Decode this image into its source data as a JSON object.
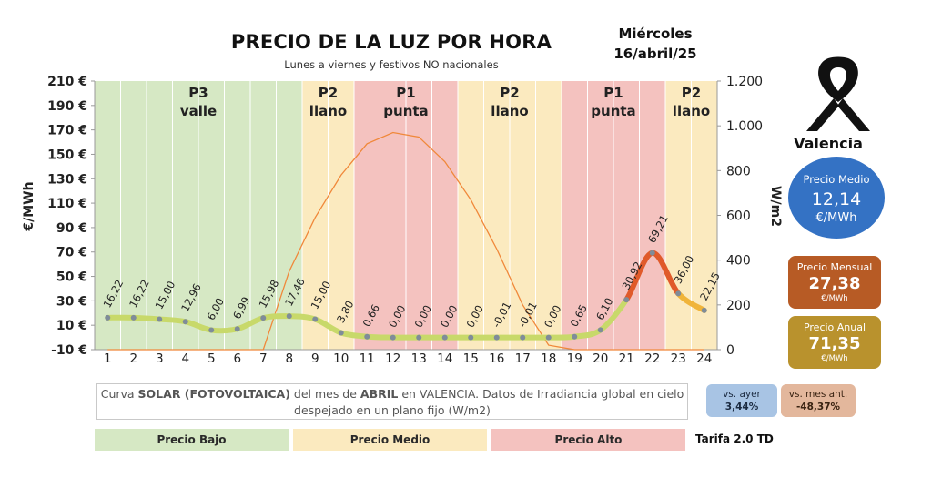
{
  "header": {
    "title": "PRECIO DE LA LUZ POR HORA",
    "subtitle": "Lunes a viernes y festivos NO nacionales",
    "weekday": "Miércoles",
    "date": "16/abril/25"
  },
  "sidebar": {
    "city": "Valencia",
    "ribbon_icon": "black-ribbon-icon",
    "medio": {
      "label": "Precio Medio",
      "value": "12,14",
      "unit": "€/MWh",
      "color": "#3472c4"
    },
    "mensual": {
      "label": "Precio Mensual",
      "value": "27,38",
      "unit": "€/MWh",
      "color": "#b75b25"
    },
    "anual": {
      "label": "Precio Anual",
      "value": "71,35",
      "unit": "€/MWh",
      "color": "#b9922d"
    }
  },
  "comparisons": {
    "ayer": {
      "label": "vs. ayer",
      "value": "3,44%"
    },
    "mes": {
      "label": "vs. mes ant.",
      "value": "-48,37%"
    }
  },
  "note": {
    "pre": "Curva ",
    "b1": "SOLAR (FOTOVOLTAICA)",
    "mid": " del mes de ",
    "b2": "ABRIL",
    "post": " en VALENCIA. Datos de Irradiancia global en cielo despejado en un plano fijo (W/m2)"
  },
  "legend": {
    "bajo": "Precio Bajo",
    "medio": "Precio Medio",
    "alto": "Precio Alto",
    "tarifa": "Tarifa 2.0 TD"
  },
  "chart_data": {
    "type": "line",
    "ylabel": "€/MWh",
    "y2label": "W/m2",
    "ylim": [
      -10,
      210
    ],
    "yticks": [
      -10,
      10,
      30,
      50,
      70,
      90,
      110,
      130,
      150,
      170,
      190,
      210
    ],
    "ytick_labels": [
      "-10 €",
      "10 €",
      "30 €",
      "50 €",
      "70 €",
      "90 €",
      "110 €",
      "130 €",
      "150 €",
      "170 €",
      "190 €",
      "210 €"
    ],
    "y2lim": [
      0,
      1200
    ],
    "y2ticks": [
      0,
      200,
      400,
      600,
      800,
      1000,
      1200
    ],
    "y2tick_labels": [
      "0",
      "200",
      "400",
      "600",
      "800",
      "1.000",
      "1.200"
    ],
    "x": [
      1,
      2,
      3,
      4,
      5,
      6,
      7,
      8,
      9,
      10,
      11,
      12,
      13,
      14,
      15,
      16,
      17,
      18,
      19,
      20,
      21,
      22,
      23,
      24
    ],
    "series": [
      {
        "axis": "left",
        "color": "#c8d96a",
        "values": [
          16.22,
          16.22,
          15.0,
          12.96,
          6.0,
          6.99,
          15.98,
          17.46,
          15.0,
          3.8,
          0.66,
          0.0,
          0.0,
          0.0,
          0.0,
          -0.01,
          -0.01,
          0.0,
          0.65,
          6.1,
          30.92,
          69.21,
          36.0,
          22.15
        ],
        "labels": [
          "16,22",
          "16,22",
          "15,00",
          "12,96",
          "6,00",
          "6,99",
          "15,98",
          "17,46",
          "15,00",
          "3,80",
          "0,66",
          "0,00",
          "0,00",
          "0,00",
          "0,00",
          "-0,01",
          "-0,01",
          "0,00",
          "0,65",
          "6,10",
          "30,92",
          "69,21",
          "36,00",
          "22,15"
        ]
      },
      {
        "axis": "right",
        "color": "#f0883a",
        "values": [
          0,
          0,
          0,
          0,
          0,
          0,
          0,
          350,
          590,
          780,
          920,
          970,
          950,
          840,
          670,
          450,
          200,
          20,
          0,
          0,
          0,
          0,
          0,
          0
        ]
      }
    ],
    "periods": [
      {
        "from": 0.5,
        "to": 8.5,
        "name": "P3",
        "type": "valle",
        "color": "#d6e8c4"
      },
      {
        "from": 8.5,
        "to": 10.5,
        "name": "P2",
        "type": "llano",
        "color": "#fbeabf"
      },
      {
        "from": 10.5,
        "to": 14.5,
        "name": "P1",
        "type": "punta",
        "color": "#f4c2bf"
      },
      {
        "from": 14.5,
        "to": 18.5,
        "name": "P2",
        "type": "llano",
        "color": "#fbeabf"
      },
      {
        "from": 18.5,
        "to": 22.5,
        "name": "P1",
        "type": "punta",
        "color": "#f4c2bf"
      },
      {
        "from": 22.5,
        "to": 24.5,
        "name": "P2",
        "type": "llano",
        "color": "#fbeabf"
      }
    ]
  }
}
